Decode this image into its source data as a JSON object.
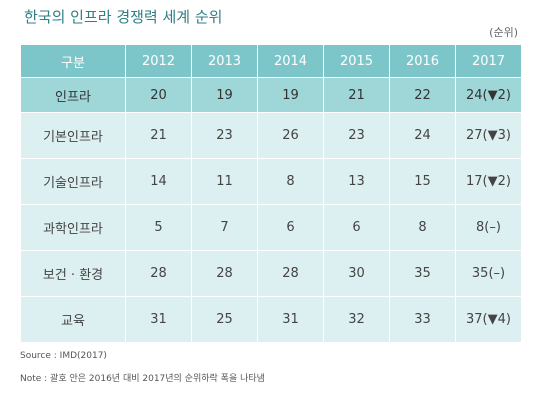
{
  "title": "한국의 인프라 경쟁력 세계 순위",
  "unit": "(순위)",
  "table": {
    "headers": [
      "구분",
      "2012",
      "2013",
      "2014",
      "2015",
      "2016",
      "2017"
    ],
    "rows": [
      {
        "label": "인프라",
        "values": [
          "20",
          "19",
          "19",
          "21",
          "22",
          "24(▼2)"
        ]
      },
      {
        "label": "기본인프라",
        "values": [
          "21",
          "23",
          "26",
          "23",
          "24",
          "27(▼3)"
        ]
      },
      {
        "label": "기술인프라",
        "values": [
          "14",
          "11",
          "8",
          "13",
          "15",
          "17(▼2)"
        ]
      },
      {
        "label": "과학인프라",
        "values": [
          "5",
          "7",
          "6",
          "6",
          "8",
          "8(–)"
        ]
      },
      {
        "label": "보건 · 환경",
        "values": [
          "28",
          "28",
          "28",
          "30",
          "35",
          "35(–)"
        ]
      },
      {
        "label": "교육",
        "values": [
          "31",
          "25",
          "31",
          "32",
          "33",
          "37(▼4)"
        ]
      }
    ]
  },
  "source": "Source : IMD(2017)",
  "note": "Note : 괄호 안은 2016년 대비 2017년의 순위하락 폭을 나타냄"
}
